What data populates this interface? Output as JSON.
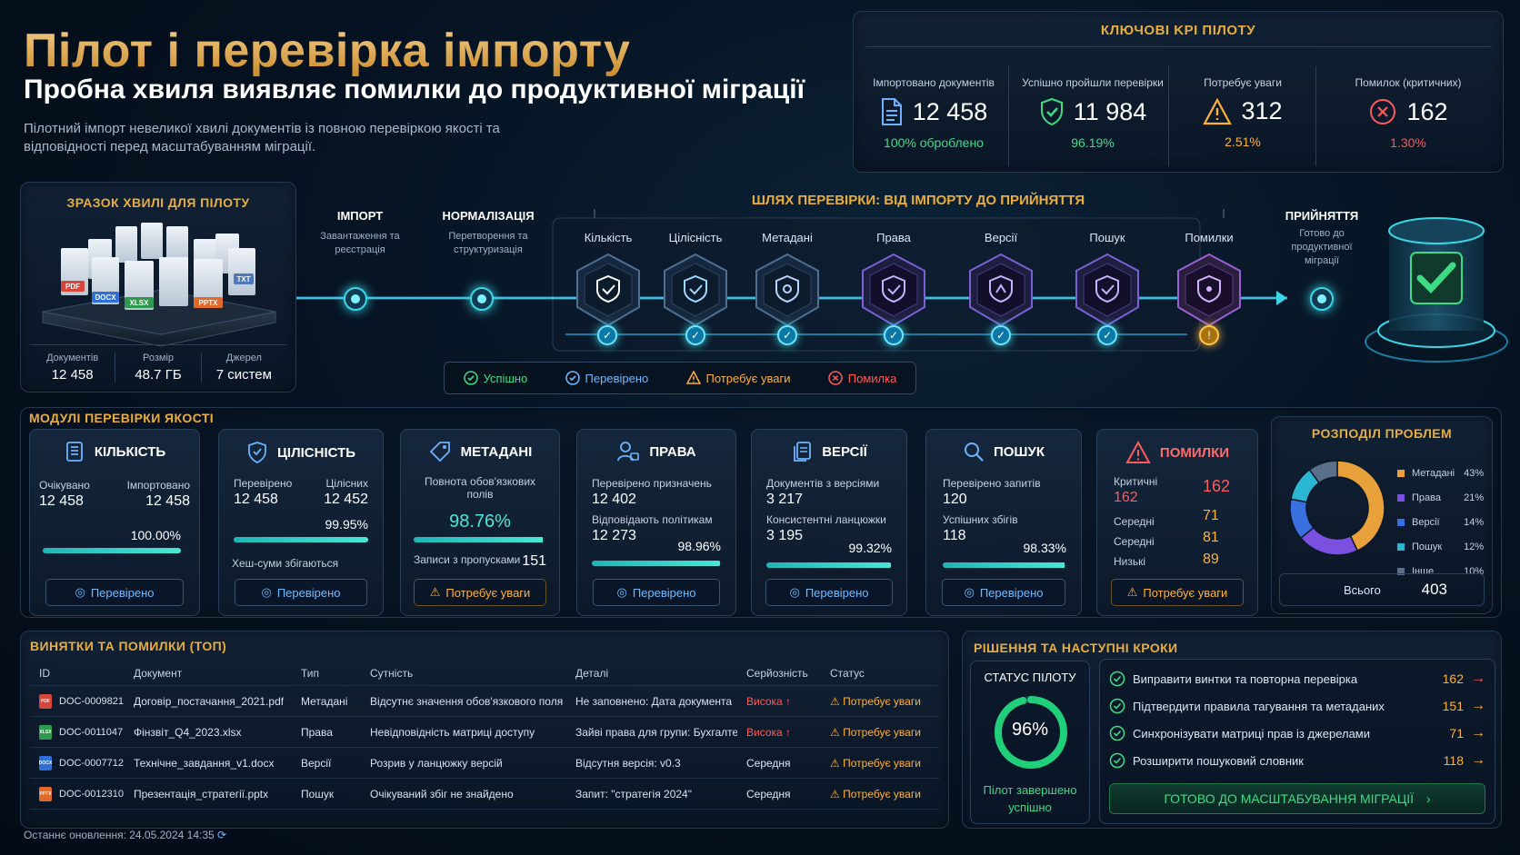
{
  "header": {
    "title": "Пілот і перевірка імпорту",
    "subtitle": "Пробна хвиля виявляє помилки до продуктивної міграції",
    "description": "Пілотний імпорт невеликої хвилі документів із повною перевіркою якості та відповідності перед масштабуванням міграції."
  },
  "kpi": {
    "title": "КЛЮЧОВІ KPI ПІЛОТУ",
    "items": [
      {
        "label": "Імпортовано документів",
        "value": "12 458",
        "sub": "100% оброблено",
        "icon": "document-icon"
      },
      {
        "label": "Успішно пройшли перевірки",
        "value": "11 984",
        "sub": "96.19%",
        "icon": "shield-check-icon"
      },
      {
        "label": "Потребує уваги",
        "value": "312",
        "sub": "2.51%",
        "icon": "warning-icon"
      },
      {
        "label": "Помилок (критичних)",
        "value": "162",
        "sub": "1.30%",
        "icon": "error-icon"
      }
    ]
  },
  "sample": {
    "title": "ЗРАЗОК ХВИЛІ ДЛЯ ПІЛОТУ",
    "file_types": [
      "PDF",
      "DOCX",
      "XLSX",
      "PPTX",
      "TXT"
    ],
    "stats": [
      {
        "label": "Документів",
        "value": "12 458"
      },
      {
        "label": "Розмір",
        "value": "48.7 ГБ"
      },
      {
        "label": "Джерел",
        "value": "7 систем"
      }
    ]
  },
  "pipeline": {
    "import": {
      "label": "ІМПОРТ",
      "sub": "Завантаження та реєстрація"
    },
    "normalize": {
      "label": "НОРМАЛІЗАЦІЯ",
      "sub": "Перетворення та структуризація"
    },
    "path_title": "ШЛЯХ ПЕРЕВІРКИ: ВІД ІМПОРТУ ДО ПРИЙНЯТТЯ",
    "checks": [
      "Кількість",
      "Цілісність",
      "Метадані",
      "Права",
      "Версії",
      "Пошук",
      "Помилки"
    ],
    "accept": {
      "label": "ПРИЙНЯТТЯ",
      "sub": "Готово до продуктивної міграції"
    },
    "legend": {
      "success": "Успішно",
      "verified": "Перевірено",
      "attention": "Потребує уваги",
      "error": "Помилка"
    }
  },
  "modules": {
    "title": "МОДУЛІ ПЕРЕВІРКИ ЯКОСТІ",
    "count": {
      "name": "КІЛЬКІСТЬ",
      "l1": "Очікувано",
      "v1": "12 458",
      "l2": "Імпортовано",
      "v2": "12 458",
      "pct": "100.00%",
      "level": 1.0,
      "status": "Перевірено"
    },
    "integrity": {
      "name": "ЦІЛІСНІСТЬ",
      "l1": "Перевірено",
      "v1": "12 458",
      "l2": "Цілісних",
      "v2": "12 452",
      "pct": "99.95%",
      "level": 0.9995,
      "note": "Хеш-суми збігаються",
      "status": "Перевірено"
    },
    "metadata": {
      "name": "МЕТАДАНІ",
      "l1": "Повнота обов'язкових полів",
      "pct": "98.76%",
      "level": 0.9876,
      "l2": "Записи з пропусками",
      "v2": "151",
      "status": "Потребує уваги"
    },
    "rights": {
      "name": "ПРАВА",
      "l1": "Перевірено призначень",
      "v1": "12 402",
      "l2": "Відповідають політикам",
      "v2": "12 273",
      "pct": "98.96%",
      "level": 0.9896,
      "status": "Перевірено"
    },
    "versions": {
      "name": "ВЕРСІЇ",
      "l1": "Документів з версіями",
      "v1": "3 217",
      "l2": "Консистентні ланцюжки",
      "v2": "3 195",
      "pct": "99.32%",
      "level": 0.9932,
      "status": "Перевірено"
    },
    "search": {
      "name": "ПОШУК",
      "l1": "Перевірено запитів",
      "v1": "120",
      "l2": "Успішних збігів",
      "v2": "118",
      "pct": "98.33%",
      "level": 0.9833,
      "status": "Перевірено"
    },
    "errors": {
      "name": "ПОМИЛКИ",
      "rows": [
        {
          "label": "Критичні",
          "value": "162"
        },
        {
          "label": "Середні",
          "value": "71"
        },
        {
          "label": "Середні",
          "value": "81"
        },
        {
          "label": "Низькі",
          "value": "89"
        }
      ],
      "critical_extra": "162",
      "status": "Потребує уваги"
    }
  },
  "distribution": {
    "title": "РОЗПОДІЛ ПРОБЛЕМ",
    "items": [
      {
        "name": "Метадані",
        "pct": "43%",
        "value": 43,
        "color": "#e9a23b"
      },
      {
        "name": "Права",
        "pct": "21%",
        "value": 21,
        "color": "#7b4fe0"
      },
      {
        "name": "Версії",
        "pct": "14%",
        "value": 14,
        "color": "#3a6fe0"
      },
      {
        "name": "Пошук",
        "pct": "12%",
        "value": 12,
        "color": "#2bb7d4"
      },
      {
        "name": "Інше",
        "pct": "10%",
        "value": 10,
        "color": "#5a6f8a"
      }
    ],
    "total_label": "Всього",
    "total_value": "403"
  },
  "exceptions": {
    "title": "ВИНЯТКИ ТА ПОМИЛКИ (ТОП)",
    "headers": [
      "ID",
      "Документ",
      "Тип",
      "Сутність",
      "Деталі",
      "Серйозність",
      "Статус"
    ],
    "rows": [
      {
        "icon": "PDF",
        "color": "#d8453b",
        "id": "DOC-0009821",
        "doc": "Договір_постачання_2021.pdf",
        "type": "Метадані",
        "entity": "Відсутнє значення обов'язкового поля",
        "details": "Не заповнено: Дата документа",
        "severity": "Висока",
        "high": true,
        "status": "Потребує уваги"
      },
      {
        "icon": "XLSX",
        "color": "#2e9a4f",
        "id": "DOC-0011047",
        "doc": "Фінзвіт_Q4_2023.xlsx",
        "type": "Права",
        "entity": "Невідповідність матриці доступу",
        "details": "Зайві права для групи: Бухгалтерія",
        "severity": "Висока",
        "high": true,
        "status": "Потребує уваги"
      },
      {
        "icon": "DOCX",
        "color": "#2f6fd6",
        "id": "DOC-0007712",
        "doc": "Технічне_завдання_v1.docx",
        "type": "Версії",
        "entity": "Розрив у ланцюжку версій",
        "details": "Відсутня версія: v0.3",
        "severity": "Середня",
        "high": false,
        "status": "Потребує уваги"
      },
      {
        "icon": "PPTX",
        "color": "#e0692b",
        "id": "DOC-0012310",
        "doc": "Презентація_стратегії.pptx",
        "type": "Пошук",
        "entity": "Очікуваний збіг не знайдено",
        "details": "Запит: \"стратегія 2024\"",
        "severity": "Середня",
        "high": false,
        "status": "Потребує уваги"
      }
    ]
  },
  "decisions": {
    "title": "РІШЕННЯ ТА НАСТУПНІ КРОКИ",
    "status_title": "СТАТУС ПІЛОТУ",
    "status_pct": "96%",
    "status_level": 0.96,
    "status_text": "Пілот завершено успішно",
    "steps": [
      {
        "label": "Виправити винтки та повторна перевірка",
        "value": "162"
      },
      {
        "label": "Підтвердити правила тагування та метаданих",
        "value": "151"
      },
      {
        "label": "Синхронізувати матриці прав із джерелами",
        "value": "71"
      },
      {
        "label": "Розширити пошуковий словник",
        "value": "118"
      }
    ],
    "ready": "ГОТОВО ДО МАСШТАБУВАННЯ МІГРАЦІЇ"
  },
  "footer": {
    "updated": "Останнє оновлення: 24.05.2024 14:35"
  }
}
